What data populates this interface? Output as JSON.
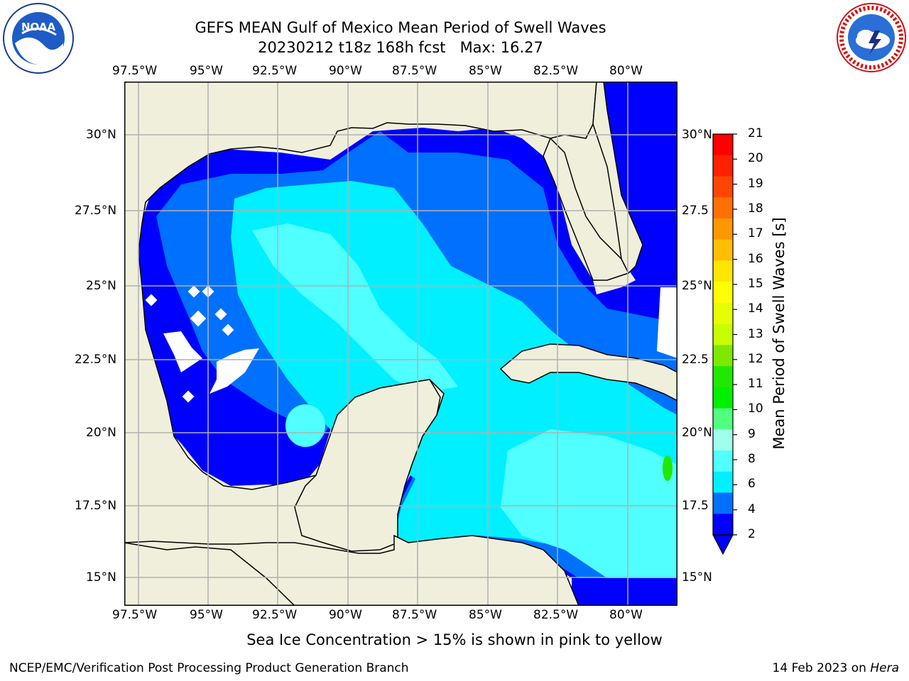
{
  "title": {
    "line1": "GEFS MEAN Gulf of Mexico Mean Period of Swell Waves",
    "line2": "20230212 t18z 168h fcst   Max: 16.27"
  },
  "logos": {
    "left": {
      "icon": "noaa-logo-icon",
      "text": "NOAA",
      "ring_text": "NATIONAL OCEANIC AND ATMOSPHERIC ADMINISTRATION · U.S. DEPARTMENT OF COMMERCE"
    },
    "right": {
      "icon": "nws-logo-icon",
      "ring_text": "NATIONAL WEATHER SERVICE"
    }
  },
  "axes": {
    "lon_ticks": [
      "97.5°W",
      "95°W",
      "92.5°W",
      "90°W",
      "87.5°W",
      "85°W",
      "82.5°W",
      "80°W"
    ],
    "lat_ticks_left": [
      "30°N",
      "27.5°N",
      "25°N",
      "22.5°N",
      "20°N",
      "17.5°N",
      "15°N"
    ],
    "lat_ticks_right": [
      "30°N",
      "27.5",
      "25°N",
      "22.5",
      "20°N",
      "17.5",
      "15°N"
    ]
  },
  "colorbar": {
    "label": "Mean Period of Swell Waves [s]",
    "ticks": [
      "21",
      "20",
      "19",
      "18",
      "17",
      "16",
      "15",
      "14",
      "13",
      "12",
      "11",
      "10",
      "9",
      "8",
      "6",
      "4",
      "2"
    ],
    "colors": [
      "#ff0000",
      "#ff2000",
      "#ff4500",
      "#ff7000",
      "#ff9800",
      "#ffbf00",
      "#ffe600",
      "#ffff00",
      "#e6ff00",
      "#c8ff00",
      "#7ee800",
      "#22e800",
      "#00f000",
      "#50ff80",
      "#a0ffec",
      "#50ffff",
      "#00f0ff",
      "#0070ff",
      "#0000ff"
    ],
    "extend_color": "#0000ff"
  },
  "map_colors": {
    "land": "#efefdc",
    "ocean_deep": "#0000ff",
    "ocean_mid": "#0070ff",
    "ocean_light": "#00f0ff",
    "ocean_pale": "#50ffff",
    "green": "#22e800",
    "yellow": "#e6ff00",
    "ice_white": "#ffffff",
    "grid": "#b0b0b0"
  },
  "note": "Sea Ice Concentration > 15% is shown in pink to yellow",
  "footer": {
    "left": "NCEP/EMC/Verification Post Processing Product Generation Branch",
    "right_date": "14 Feb 2023 on ",
    "right_host": "Hera"
  }
}
